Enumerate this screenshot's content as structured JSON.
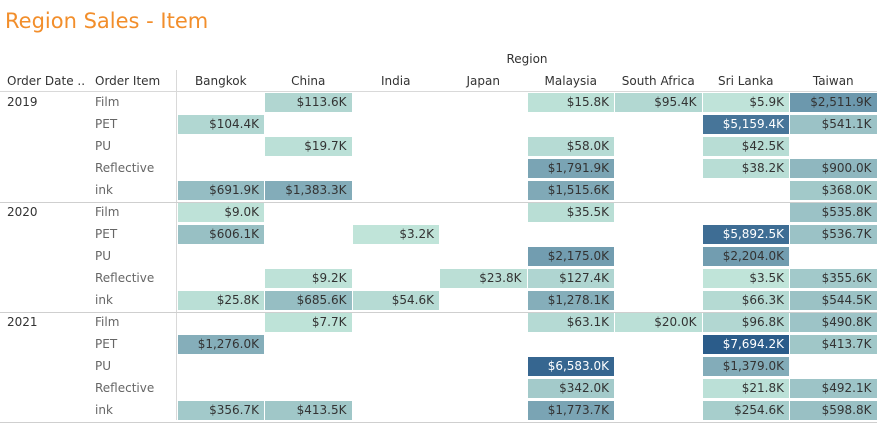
{
  "title": "Region Sales - Item",
  "header": {
    "group_label": "Region",
    "col1_label": "Order Date ..",
    "col2_label": "Order Item"
  },
  "colors": {
    "title": "#f28e2b",
    "scale_low": "#c3e7db",
    "scale_high": "#2b5c8a"
  },
  "chart_data": {
    "type": "heatmap",
    "title": "Region Sales - Item",
    "column_group_label": "Region",
    "regions": [
      "Bangkok",
      "China",
      "India",
      "Japan",
      "Malaysia",
      "South Africa",
      "Sri Lanka",
      "Taiwan"
    ],
    "years": [
      {
        "year": "2019",
        "rows": [
          {
            "item": "Film",
            "cells": [
              "",
              "$113.6K",
              "",
              "",
              "$15.8K",
              "$95.4K",
              "$5.9K",
              "$2,511.9K"
            ],
            "values": [
              null,
              113.6,
              null,
              null,
              15.8,
              95.4,
              5.9,
              2511.9
            ]
          },
          {
            "item": "PET",
            "cells": [
              "$104.4K",
              "",
              "",
              "",
              "",
              "",
              "$5,159.4K",
              "$541.1K"
            ],
            "values": [
              104.4,
              null,
              null,
              null,
              null,
              null,
              5159.4,
              541.1
            ]
          },
          {
            "item": "PU",
            "cells": [
              "",
              "$19.7K",
              "",
              "",
              "$58.0K",
              "",
              "$42.5K",
              ""
            ],
            "values": [
              null,
              19.7,
              null,
              null,
              58.0,
              null,
              42.5,
              null
            ]
          },
          {
            "item": "Reflective",
            "cells": [
              "",
              "",
              "",
              "",
              "$1,791.9K",
              "",
              "$38.2K",
              "$900.0K"
            ],
            "values": [
              null,
              null,
              null,
              null,
              1791.9,
              null,
              38.2,
              900.0
            ]
          },
          {
            "item": "ink",
            "cells": [
              "$691.9K",
              "$1,383.3K",
              "",
              "",
              "$1,515.6K",
              "",
              "",
              "$368.0K"
            ],
            "values": [
              691.9,
              1383.3,
              null,
              null,
              1515.6,
              null,
              null,
              368.0
            ]
          }
        ]
      },
      {
        "year": "2020",
        "rows": [
          {
            "item": "Film",
            "cells": [
              "$9.0K",
              "",
              "",
              "",
              "$35.5K",
              "",
              "",
              "$535.8K"
            ],
            "values": [
              9.0,
              null,
              null,
              null,
              35.5,
              null,
              null,
              535.8
            ]
          },
          {
            "item": "PET",
            "cells": [
              "$606.1K",
              "",
              "$3.2K",
              "",
              "",
              "",
              "$5,892.5K",
              "$536.7K"
            ],
            "values": [
              606.1,
              null,
              3.2,
              null,
              null,
              null,
              5892.5,
              536.7
            ]
          },
          {
            "item": "PU",
            "cells": [
              "",
              "",
              "",
              "",
              "$2,175.0K",
              "",
              "$2,204.0K",
              ""
            ],
            "values": [
              null,
              null,
              null,
              null,
              2175.0,
              null,
              2204.0,
              null
            ]
          },
          {
            "item": "Reflective",
            "cells": [
              "",
              "$9.2K",
              "",
              "$23.8K",
              "$127.4K",
              "",
              "$3.5K",
              "$355.6K"
            ],
            "values": [
              null,
              9.2,
              null,
              23.8,
              127.4,
              null,
              3.5,
              355.6
            ]
          },
          {
            "item": "ink",
            "cells": [
              "$25.8K",
              "$685.6K",
              "$54.6K",
              "",
              "$1,278.1K",
              "",
              "$66.3K",
              "$544.5K"
            ],
            "values": [
              25.8,
              685.6,
              54.6,
              null,
              1278.1,
              null,
              66.3,
              544.5
            ]
          }
        ]
      },
      {
        "year": "2021",
        "rows": [
          {
            "item": "Film",
            "cells": [
              "",
              "$7.7K",
              "",
              "",
              "$63.1K",
              "$20.0K",
              "$96.8K",
              "$490.8K"
            ],
            "values": [
              null,
              7.7,
              null,
              null,
              63.1,
              20.0,
              96.8,
              490.8
            ]
          },
          {
            "item": "PET",
            "cells": [
              "$1,276.0K",
              "",
              "",
              "",
              "",
              "",
              "$7,694.2K",
              "$413.7K"
            ],
            "values": [
              1276.0,
              null,
              null,
              null,
              null,
              null,
              7694.2,
              413.7
            ]
          },
          {
            "item": "PU",
            "cells": [
              "",
              "",
              "",
              "",
              "$6,583.0K",
              "",
              "$1,379.0K",
              ""
            ],
            "values": [
              null,
              null,
              null,
              null,
              6583.0,
              null,
              1379.0,
              null
            ]
          },
          {
            "item": "Reflective",
            "cells": [
              "",
              "",
              "",
              "",
              "$342.0K",
              "",
              "$21.8K",
              "$492.1K"
            ],
            "values": [
              null,
              null,
              null,
              null,
              342.0,
              null,
              21.8,
              492.1
            ]
          },
          {
            "item": "ink",
            "cells": [
              "$356.7K",
              "$413.5K",
              "",
              "",
              "$1,773.7K",
              "",
              "$254.6K",
              "$598.8K"
            ],
            "values": [
              356.7,
              413.5,
              null,
              null,
              1773.7,
              null,
              254.6,
              598.8
            ]
          }
        ]
      }
    ]
  }
}
